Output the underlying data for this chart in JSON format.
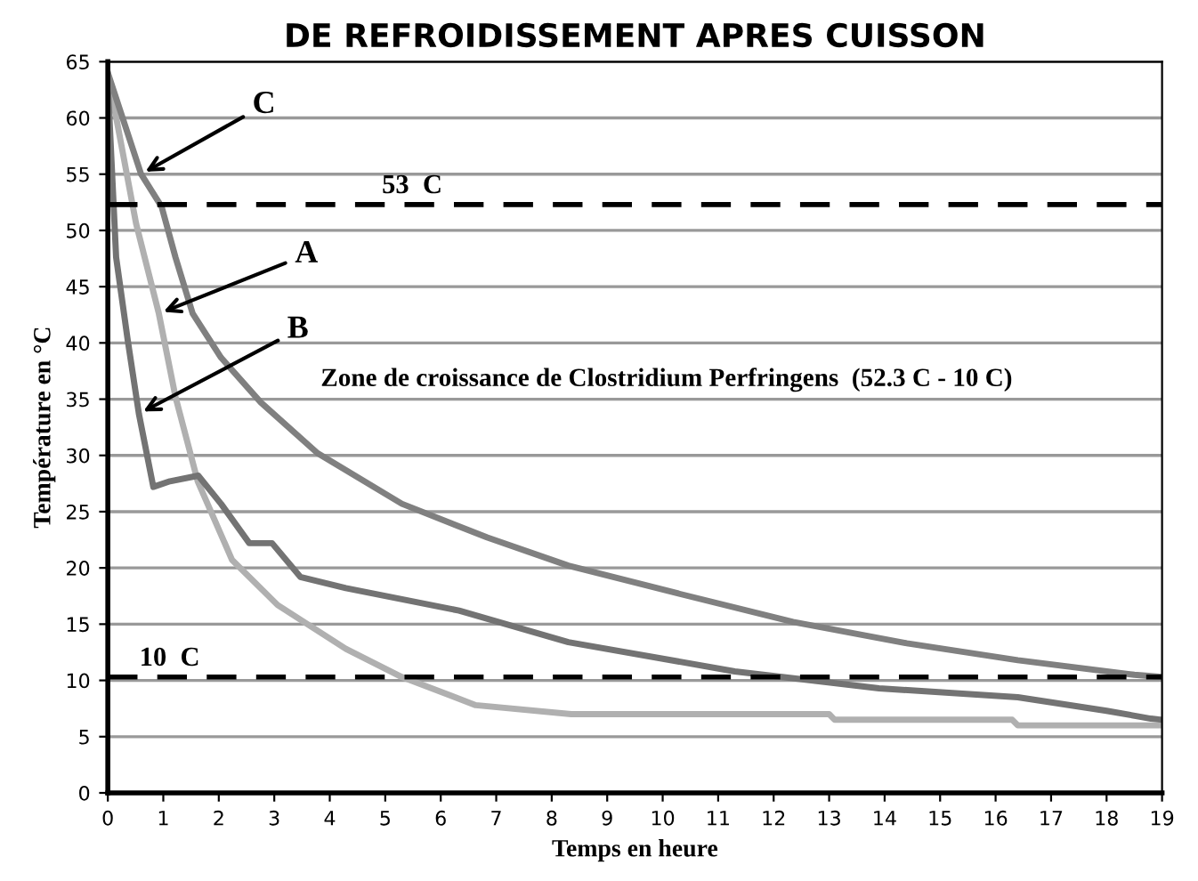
{
  "chart_data": {
    "type": "line",
    "title": "DE REFROIDISSEMENT APRES CUISSON",
    "xlabel": "Temps en heure",
    "ylabel": "Température en °C",
    "xlim": [
      0,
      19
    ],
    "xticks": [
      0,
      1,
      2,
      3,
      4,
      5,
      6,
      7,
      8,
      9,
      10,
      11,
      12,
      13,
      14,
      15,
      16,
      17,
      18,
      19
    ],
    "ylim": [
      0,
      65
    ],
    "yticks": [
      0,
      5,
      10,
      15,
      20,
      25,
      30,
      35,
      40,
      45,
      50,
      55,
      60,
      65
    ],
    "grid": "y",
    "legend": false,
    "marker": "none",
    "line_style": "solid",
    "series": [
      {
        "color": "#b0b0b0",
        "x": [
          0,
          0.51,
          0.92,
          1.22,
          1.62,
          2.24,
          3.06,
          4.29,
          5.3,
          6.63,
          8.35,
          13,
          13.1,
          16.3,
          16.4,
          19
        ],
        "values": [
          64,
          50.6,
          42.6,
          35.2,
          27.7,
          20.7,
          16.7,
          12.8,
          10.3,
          7.8,
          7,
          7,
          6.5,
          6.5,
          6,
          6
        ]
      },
      {
        "color": "#737373",
        "x": [
          0,
          0.15,
          0.36,
          0.56,
          0.82,
          1.12,
          1.63,
          2.04,
          2.55,
          2.96,
          3.47,
          4.29,
          6.33,
          8.3,
          11.3,
          13.9,
          16.4,
          18,
          18.8,
          19
        ],
        "values": [
          63,
          47.6,
          40.2,
          33.7,
          27.2,
          27.7,
          28.2,
          25.7,
          22.2,
          22.2,
          19.2,
          18.2,
          16.2,
          13.4,
          10.8,
          9.3,
          8.5,
          7.3,
          6.6,
          6.5
        ]
      },
      {
        "color": "#808080",
        "x": [
          0,
          0.6,
          0.97,
          1.22,
          1.53,
          2.04,
          2.76,
          3.78,
          5.3,
          6.84,
          8.3,
          10.3,
          12.35,
          14.4,
          16.4,
          18.5,
          19
        ],
        "values": [
          64,
          55,
          52.1,
          47.6,
          42.6,
          38.7,
          34.7,
          30.2,
          25.7,
          22.7,
          20.2,
          17.7,
          15.2,
          13.3,
          11.8,
          10.5,
          10.3
        ]
      }
    ],
    "ref_lines": [
      {
        "axis": "y",
        "value": 52.3,
        "label": "53  C",
        "color": "#000000",
        "line_style": "dashed"
      },
      {
        "axis": "y",
        "value": 10.3,
        "label": "10  C",
        "color": "#000000",
        "line_style": "dashed"
      }
    ],
    "annotations": [
      "Zone de croissance de Clostridium Perfringens  (52.3 C - 10 C)",
      {
        "text": "A",
        "x": 0.92,
        "y": 42.6
      },
      {
        "text": "B",
        "x": 0.56,
        "y": 33.7
      },
      {
        "text": "C",
        "x": 0.6,
        "y": 55
      }
    ]
  }
}
